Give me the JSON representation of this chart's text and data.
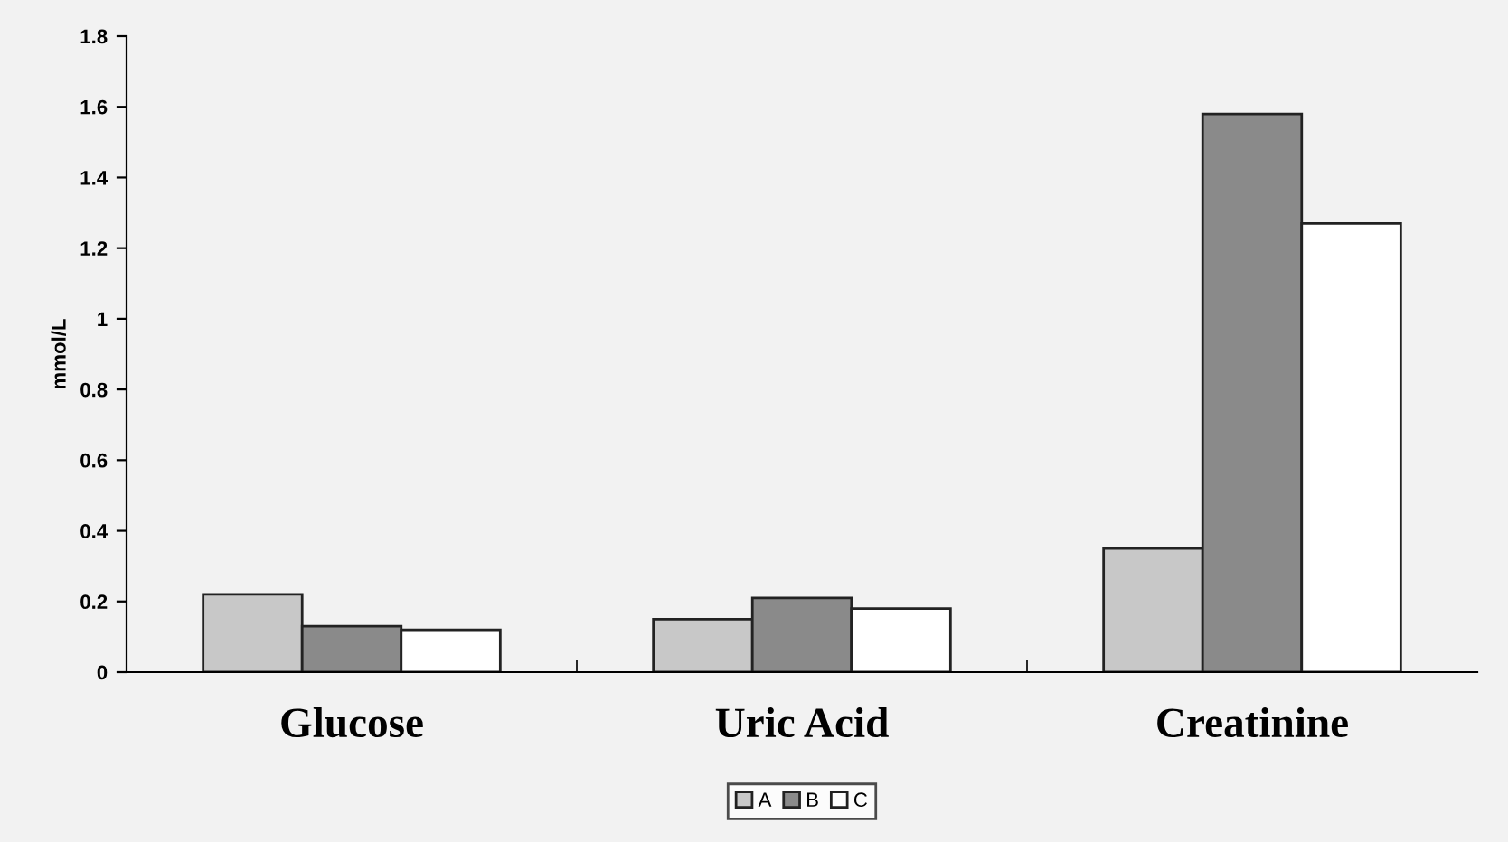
{
  "chart_data": {
    "type": "bar",
    "ylabel": "mmol/L",
    "categories": [
      "Glucose",
      "Uric Acid",
      "Creatinine"
    ],
    "series": [
      {
        "name": "A",
        "color": "#c8c8c8",
        "values": [
          0.22,
          0.15,
          0.35
        ]
      },
      {
        "name": "B",
        "color": "#8a8a8a",
        "values": [
          0.13,
          0.21,
          1.58
        ]
      },
      {
        "name": "C",
        "color": "#ffffff",
        "values": [
          0.12,
          0.18,
          1.27
        ]
      }
    ],
    "ylim": [
      0,
      1.8
    ],
    "yticks": [
      0,
      0.2,
      0.4,
      0.6,
      0.8,
      1,
      1.2,
      1.4,
      1.6,
      1.8
    ],
    "grid": false,
    "legend": "bottom"
  }
}
